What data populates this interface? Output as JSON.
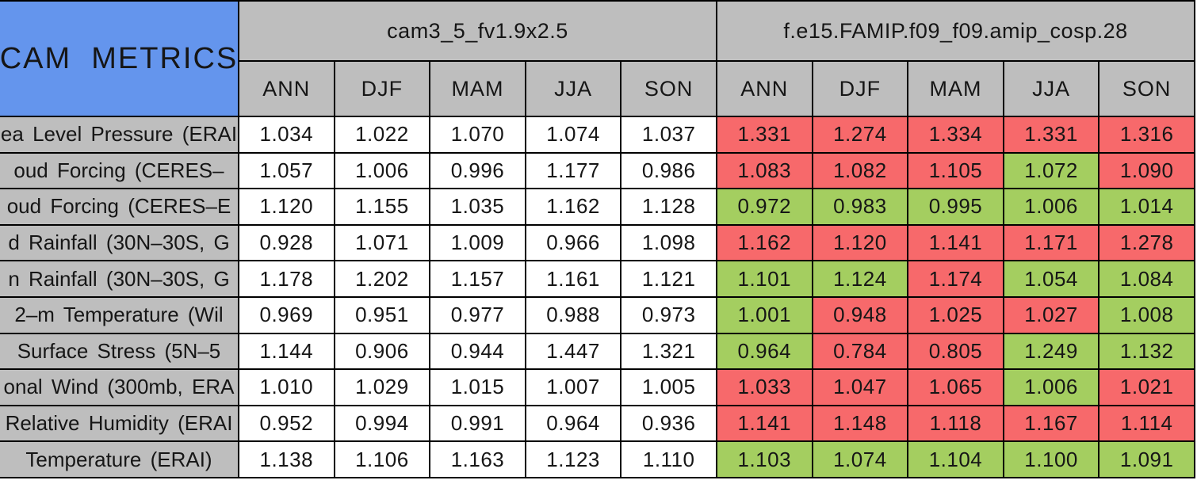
{
  "title": "CAM  METRICS",
  "colors": {
    "title_bg": "#6495ed",
    "header_bg": "#bebebe",
    "better_green": "#a4ce60",
    "worse_red": "#f7696b",
    "neutral_white": "#ffffff",
    "border": "#000000"
  },
  "chart_data": {
    "type": "table",
    "title": "CAM  METRICS",
    "column_groups": [
      "cam3_5_fv1.9x2.5",
      "f.e15.FAMIP.f09_f09.amip_cosp.28"
    ],
    "seasons": [
      "ANN",
      "DJF",
      "MAM",
      "JJA",
      "SON"
    ],
    "legend_note": "model2 cells shaded red or green",
    "rows": [
      {
        "label": "ea Level Pressure (ERAI",
        "model1": [
          "1.034",
          "1.022",
          "1.070",
          "1.074",
          "1.037"
        ],
        "model2": [
          "1.331",
          "1.274",
          "1.334",
          "1.331",
          "1.316"
        ],
        "model2_status": [
          "red",
          "red",
          "red",
          "red",
          "red"
        ]
      },
      {
        "label": "oud Forcing (CERES–",
        "model1": [
          "1.057",
          "1.006",
          "0.996",
          "1.177",
          "0.986"
        ],
        "model2": [
          "1.083",
          "1.082",
          "1.105",
          "1.072",
          "1.090"
        ],
        "model2_status": [
          "red",
          "red",
          "red",
          "green",
          "red"
        ]
      },
      {
        "label": "oud Forcing (CERES–E",
        "model1": [
          "1.120",
          "1.155",
          "1.035",
          "1.162",
          "1.128"
        ],
        "model2": [
          "0.972",
          "0.983",
          "0.995",
          "1.006",
          "1.014"
        ],
        "model2_status": [
          "green",
          "green",
          "green",
          "green",
          "green"
        ]
      },
      {
        "label": "d Rainfall (30N–30S, G",
        "model1": [
          "0.928",
          "1.071",
          "1.009",
          "0.966",
          "1.098"
        ],
        "model2": [
          "1.162",
          "1.120",
          "1.141",
          "1.171",
          "1.278"
        ],
        "model2_status": [
          "red",
          "red",
          "red",
          "red",
          "red"
        ]
      },
      {
        "label": "n Rainfall (30N–30S, G",
        "model1": [
          "1.178",
          "1.202",
          "1.157",
          "1.161",
          "1.121"
        ],
        "model2": [
          "1.101",
          "1.124",
          "1.174",
          "1.054",
          "1.084"
        ],
        "model2_status": [
          "green",
          "green",
          "red",
          "green",
          "green"
        ]
      },
      {
        "label": "2–m Temperature (Wil",
        "model1": [
          "0.969",
          "0.951",
          "0.977",
          "0.988",
          "0.973"
        ],
        "model2": [
          "1.001",
          "0.948",
          "1.025",
          "1.027",
          "1.008"
        ],
        "model2_status": [
          "green",
          "red",
          "red",
          "red",
          "green"
        ]
      },
      {
        "label": "Surface Stress (5N–5",
        "model1": [
          "1.144",
          "0.906",
          "0.944",
          "1.447",
          "1.321"
        ],
        "model2": [
          "0.964",
          "0.784",
          "0.805",
          "1.249",
          "1.132"
        ],
        "model2_status": [
          "green",
          "red",
          "red",
          "green",
          "green"
        ]
      },
      {
        "label": "onal Wind (300mb, ERA",
        "model1": [
          "1.010",
          "1.029",
          "1.015",
          "1.007",
          "1.005"
        ],
        "model2": [
          "1.033",
          "1.047",
          "1.065",
          "1.006",
          "1.021"
        ],
        "model2_status": [
          "red",
          "red",
          "red",
          "green",
          "red"
        ]
      },
      {
        "label": "Relative Humidity (ERAI",
        "model1": [
          "0.952",
          "0.994",
          "0.991",
          "0.964",
          "0.936"
        ],
        "model2": [
          "1.141",
          "1.148",
          "1.118",
          "1.167",
          "1.114"
        ],
        "model2_status": [
          "red",
          "red",
          "red",
          "red",
          "red"
        ]
      },
      {
        "label": "Temperature (ERAI)",
        "model1": [
          "1.138",
          "1.106",
          "1.163",
          "1.123",
          "1.110"
        ],
        "model2": [
          "1.103",
          "1.074",
          "1.104",
          "1.100",
          "1.091"
        ],
        "model2_status": [
          "green",
          "green",
          "green",
          "green",
          "green"
        ]
      }
    ]
  }
}
